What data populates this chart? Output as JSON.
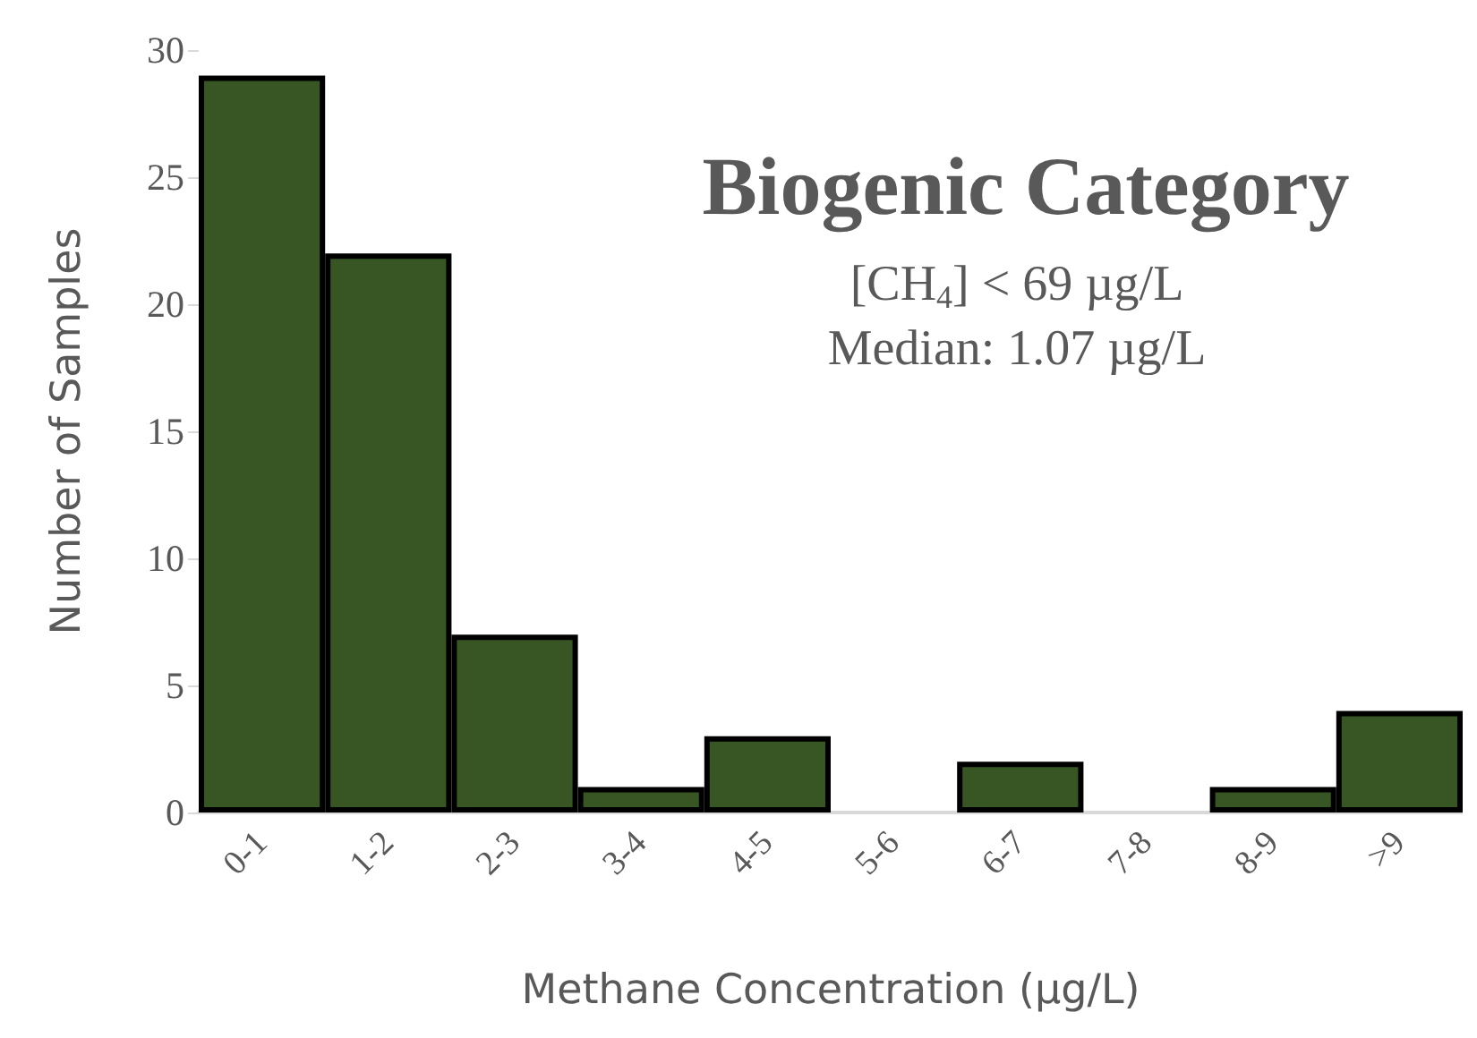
{
  "chart_data": {
    "type": "bar",
    "title": "Biogenic Category",
    "annotations": [
      "[CH$_{4}$] < 69 µg/L",
      "Median: 1.07 µg/L"
    ],
    "xlabel": "Methane Concentration (µg/L)",
    "ylabel": "Number of Samples",
    "categories": [
      "0-1",
      "1-2",
      "2-3",
      "3-4",
      "4-5",
      "5-6",
      "6-7",
      "7-8",
      "8-9",
      ">9"
    ],
    "values": [
      29,
      22,
      7,
      1,
      3,
      0,
      2,
      0,
      1,
      4
    ],
    "color": "#375623",
    "ylim": [
      0,
      30
    ],
    "yticks": [
      0,
      5,
      10,
      15,
      20,
      25,
      30
    ],
    "grid": false
  }
}
